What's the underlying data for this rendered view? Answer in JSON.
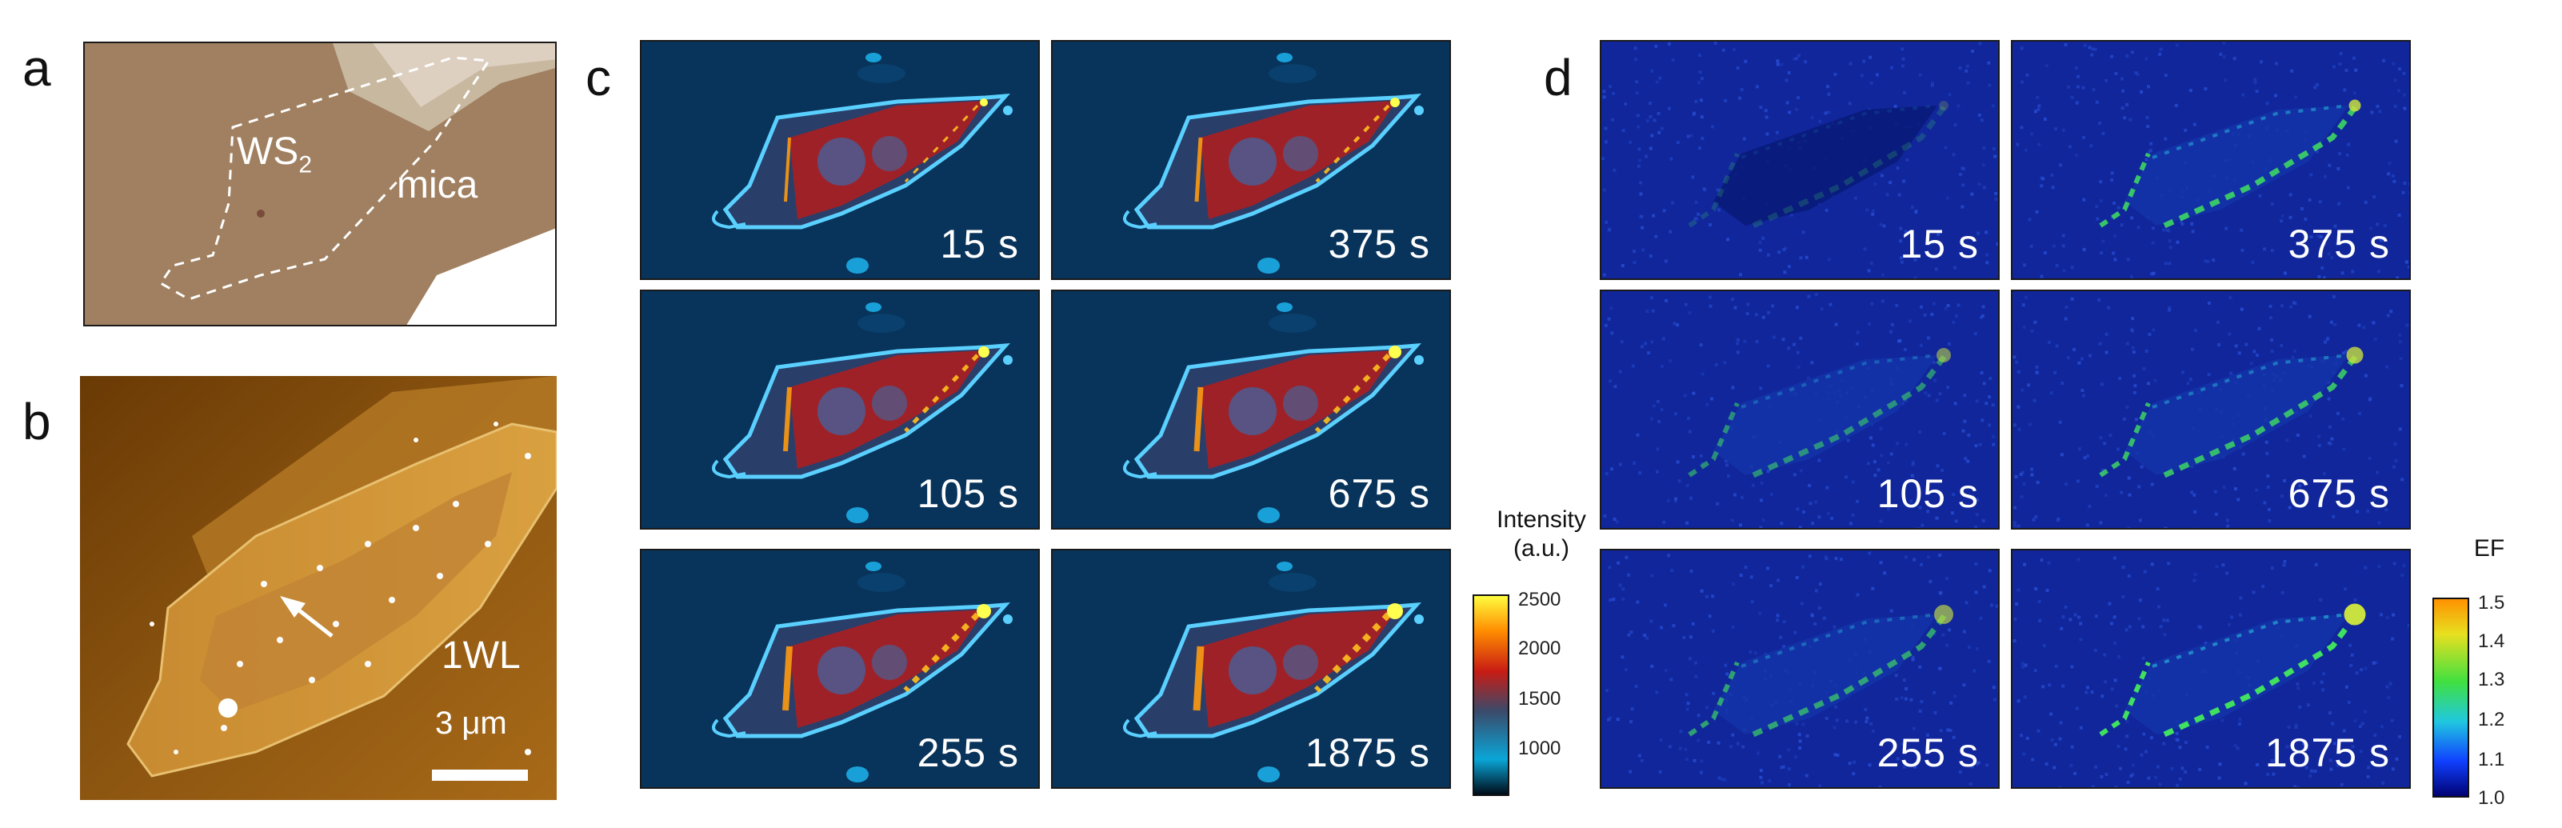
{
  "panels": {
    "a": {
      "label": "a",
      "ws2_label": "WS",
      "ws2_sub": "2",
      "mica_label": "mica"
    },
    "b": {
      "label": "b",
      "arrow_label": "1WL",
      "scalebar_label": "3 μm"
    },
    "c": {
      "label": "c",
      "times": [
        "15 s",
        "375 s",
        "105 s",
        "675 s",
        "255 s",
        "1875 s"
      ]
    },
    "d": {
      "label": "d",
      "times": [
        "15 s",
        "375 s",
        "105 s",
        "675 s",
        "255 s",
        "1875 s"
      ]
    }
  },
  "colorbars": {
    "intensity": {
      "title": "Intensity",
      "units": "(a.u.)",
      "ticks": [
        "2500",
        "2000",
        "1500",
        "1000"
      ],
      "range": [
        700,
        2600
      ],
      "colors": [
        "#000814",
        "#0aa6d8",
        "#3a4a6a",
        "#c81c14",
        "#ff8c00",
        "#ffff40"
      ]
    },
    "ef": {
      "title": "EF",
      "ticks": [
        "1.5",
        "1.4",
        "1.3",
        "1.2",
        "1.1",
        "1.0"
      ],
      "range": [
        1.0,
        1.52
      ],
      "colors": [
        "#000070",
        "#1040ff",
        "#20c8e0",
        "#40e040",
        "#e8e020",
        "#ff9000"
      ]
    }
  }
}
